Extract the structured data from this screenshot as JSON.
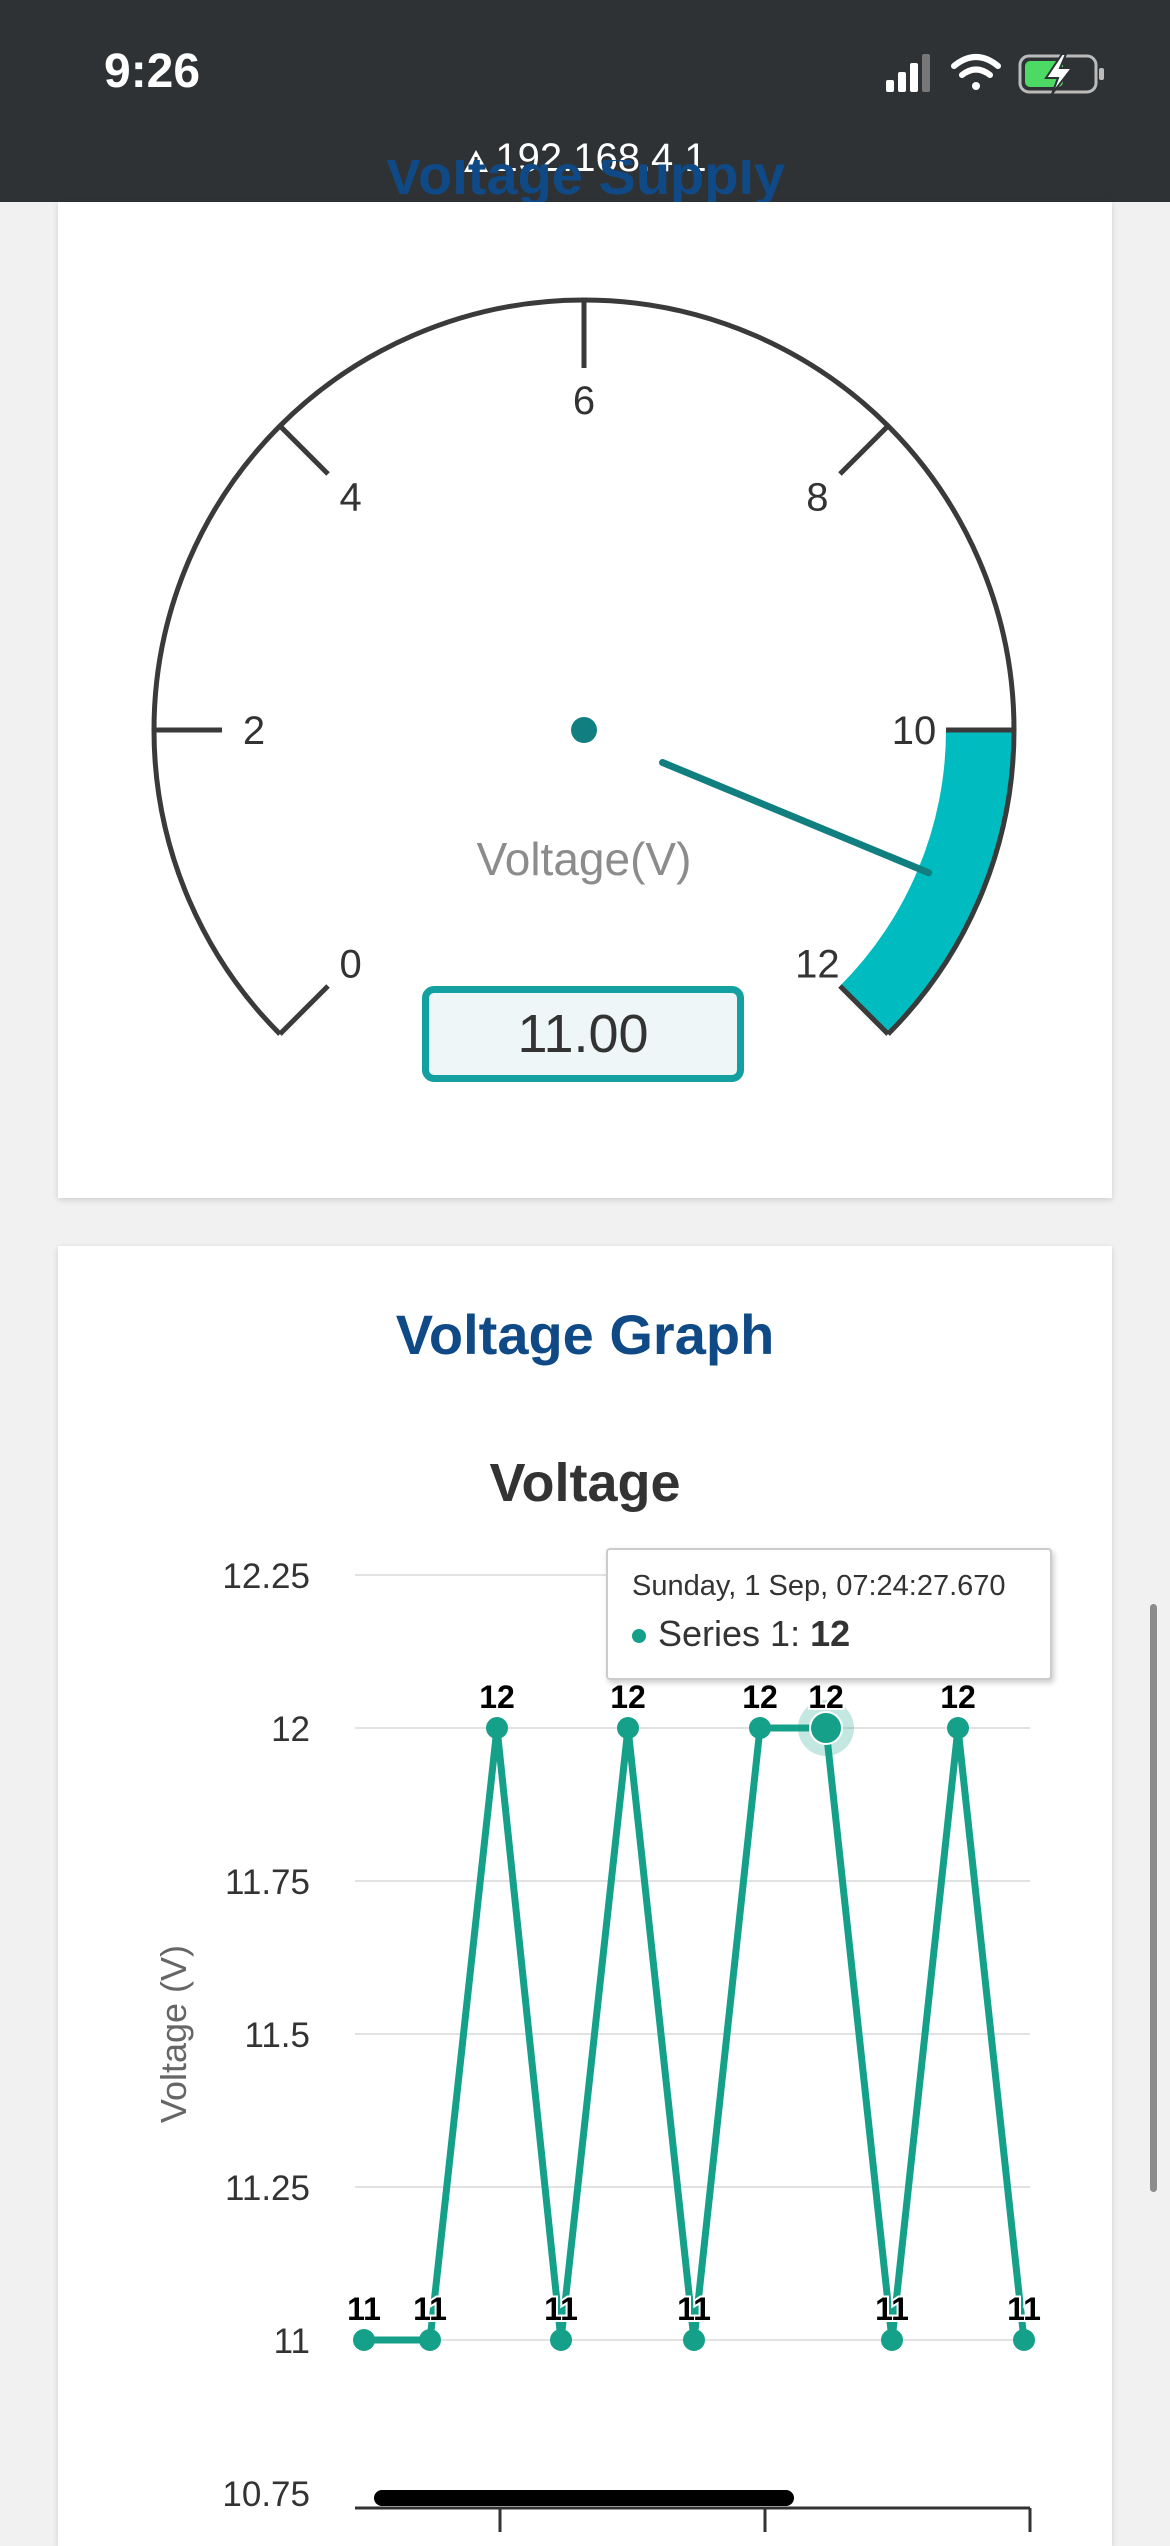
{
  "status_bar": {
    "time": "9:26",
    "url": "192.168.4.1"
  },
  "gauge": {
    "partial_title": "Voltage Supply",
    "label": "Voltage(V)",
    "readout": "11.00",
    "value": 11.0,
    "min": 0,
    "max": 12,
    "band_from": 10,
    "band_to": 12,
    "ticks": [
      "0",
      "2",
      "4",
      "6",
      "8",
      "10",
      "12"
    ],
    "band_color": "#00bcc0",
    "needle_color": "#117f80"
  },
  "graph": {
    "heading": "Voltage Graph",
    "tooltip": {
      "date": "Sunday, 1 Sep, 07:24:27.670",
      "series": "Series 1: ",
      "value": "12"
    }
  },
  "chart_data": {
    "type": "line",
    "title": "Voltage",
    "ylabel": "Voltage (V)",
    "ylim": [
      10.75,
      12.25
    ],
    "yticks": [
      "12.25",
      "12",
      "11.75",
      "11.5",
      "11.25",
      "11",
      "10.75"
    ],
    "series": [
      {
        "name": "Series 1",
        "color": "#15a089",
        "values": [
          11,
          11,
          12,
          11,
          12,
          11,
          12,
          12,
          11,
          12,
          11
        ],
        "labels": [
          "11",
          "11",
          "12",
          "11",
          "12",
          "11",
          "12",
          "12",
          "11",
          "12",
          "11"
        ]
      }
    ]
  }
}
